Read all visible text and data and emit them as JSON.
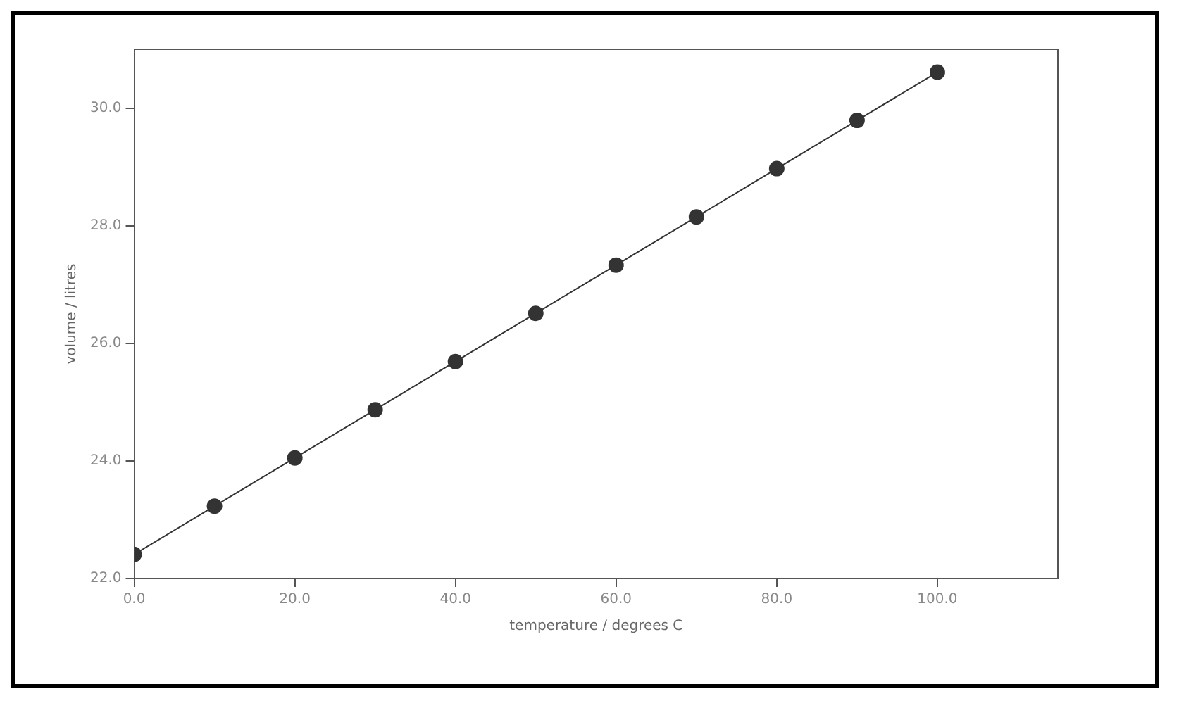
{
  "chart_data": {
    "type": "line",
    "xlabel": "temperature / degrees C",
    "ylabel": "volume / litres",
    "x": [
      0,
      10,
      20,
      30,
      40,
      50,
      60,
      70,
      80,
      90,
      100
    ],
    "series": [
      {
        "color": "#333333",
        "values": [
          22.41,
          23.23,
          24.05,
          24.87,
          25.69,
          26.51,
          27.33,
          28.15,
          28.97,
          29.79,
          30.61
        ]
      }
    ],
    "xlim": [
      0,
      115
    ],
    "xticks": [
      {
        "value": 0,
        "label": "0.0"
      },
      {
        "value": 20,
        "label": "20.0"
      },
      {
        "value": 40,
        "label": "40.0"
      },
      {
        "value": 60,
        "label": "60.0"
      },
      {
        "value": 80,
        "label": "80.0"
      },
      {
        "value": 100,
        "label": "100.0"
      }
    ],
    "ylim": [
      22,
      31
    ],
    "yticks": [
      {
        "value": 22,
        "label": "22.0"
      },
      {
        "value": 24,
        "label": "24.0"
      },
      {
        "value": 26,
        "label": "26.0"
      },
      {
        "value": 28,
        "label": "28.0"
      },
      {
        "value": 30,
        "label": "30.0"
      }
    ],
    "grid": false,
    "legend": false,
    "marker": "circle",
    "line_style": "solid"
  }
}
